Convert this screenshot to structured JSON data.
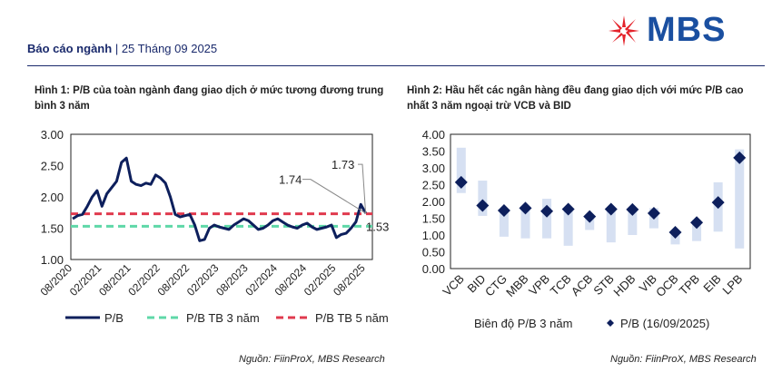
{
  "header": {
    "section": "Báo cáo ngành",
    "separator": "|",
    "date": "25 Tháng 09 2025"
  },
  "logo": {
    "text": "MBS",
    "colors": {
      "star": "#e4232b",
      "text": "#1a4fa0"
    }
  },
  "colors": {
    "navy": "#0d1f5c",
    "green": "#5fd8a8",
    "red": "#e03a4e",
    "range": "#d6e0f2"
  },
  "figure1": {
    "title": "Hình 1: P/B của toàn ngành đang giao dịch ở mức tương đương trung bình 3 năm",
    "source": "Nguồn: FiinProX, MBS Research"
  },
  "figure2": {
    "title": "Hình 2: Hầu hết các ngân hàng đều đang giao dịch với mức P/B cao nhất 3 năm ngoại trừ VCB và BID",
    "source": "Nguồn: FiinProX, MBS Research"
  },
  "chart_data": [
    {
      "type": "line",
      "ylim": [
        1.0,
        3.0
      ],
      "yticks": [
        "1.00",
        "1.50",
        "2.00",
        "2.50",
        "3.00"
      ],
      "xticks": [
        "08/2020",
        "02/2021",
        "08/2021",
        "02/2022",
        "08/2022",
        "02/2023",
        "08/2023",
        "02/2024",
        "08/2024",
        "02/2025",
        "08/2025"
      ],
      "grid": false,
      "legend_position": "bottom",
      "series": [
        {
          "name": "P/B",
          "color": "#0d1f5c",
          "style": "solid",
          "points": [
            [
              "2020-08",
              1.65
            ],
            [
              "2020-09",
              1.7
            ],
            [
              "2020-10",
              1.72
            ],
            [
              "2020-11",
              1.85
            ],
            [
              "2020-12",
              2.0
            ],
            [
              "2021-01",
              2.1
            ],
            [
              "2021-02",
              1.85
            ],
            [
              "2021-03",
              2.05
            ],
            [
              "2021-04",
              2.15
            ],
            [
              "2021-05",
              2.25
            ],
            [
              "2021-06",
              2.55
            ],
            [
              "2021-07",
              2.62
            ],
            [
              "2021-08",
              2.25
            ],
            [
              "2021-09",
              2.2
            ],
            [
              "2021-10",
              2.18
            ],
            [
              "2021-11",
              2.22
            ],
            [
              "2021-12",
              2.2
            ],
            [
              "2022-01",
              2.35
            ],
            [
              "2022-02",
              2.3
            ],
            [
              "2022-03",
              2.22
            ],
            [
              "2022-04",
              2.0
            ],
            [
              "2022-05",
              1.72
            ],
            [
              "2022-06",
              1.68
            ],
            [
              "2022-07",
              1.7
            ],
            [
              "2022-08",
              1.72
            ],
            [
              "2022-09",
              1.55
            ],
            [
              "2022-10",
              1.3
            ],
            [
              "2022-11",
              1.32
            ],
            [
              "2022-12",
              1.5
            ],
            [
              "2023-01",
              1.55
            ],
            [
              "2023-02",
              1.52
            ],
            [
              "2023-03",
              1.5
            ],
            [
              "2023-04",
              1.48
            ],
            [
              "2023-05",
              1.55
            ],
            [
              "2023-06",
              1.6
            ],
            [
              "2023-07",
              1.65
            ],
            [
              "2023-08",
              1.62
            ],
            [
              "2023-09",
              1.55
            ],
            [
              "2023-10",
              1.48
            ],
            [
              "2023-11",
              1.5
            ],
            [
              "2023-12",
              1.55
            ],
            [
              "2024-01",
              1.62
            ],
            [
              "2024-02",
              1.65
            ],
            [
              "2024-03",
              1.6
            ],
            [
              "2024-04",
              1.55
            ],
            [
              "2024-05",
              1.52
            ],
            [
              "2024-06",
              1.5
            ],
            [
              "2024-07",
              1.55
            ],
            [
              "2024-08",
              1.58
            ],
            [
              "2024-09",
              1.52
            ],
            [
              "2024-10",
              1.48
            ],
            [
              "2024-11",
              1.5
            ],
            [
              "2024-12",
              1.52
            ],
            [
              "2025-01",
              1.55
            ],
            [
              "2025-02",
              1.35
            ],
            [
              "2025-03",
              1.4
            ],
            [
              "2025-04",
              1.42
            ],
            [
              "2025-05",
              1.5
            ],
            [
              "2025-06",
              1.6
            ],
            [
              "2025-07",
              1.88
            ],
            [
              "2025-08",
              1.74
            ]
          ]
        },
        {
          "name": "P/B TB 3 năm",
          "color": "#5fd8a8",
          "style": "dashed",
          "value": 1.53
        },
        {
          "name": "P/B TB 5 năm",
          "color": "#e03a4e",
          "style": "dashed",
          "value": 1.73
        }
      ],
      "annotations": [
        "1.74",
        "1.73",
        "1.53"
      ]
    },
    {
      "type": "scatter",
      "ylim": [
        0,
        4
      ],
      "yticks": [
        "0.00",
        "0.50",
        "1.00",
        "1.50",
        "2.00",
        "2.50",
        "3.00",
        "3.50",
        "4.00"
      ],
      "categories": [
        "VCB",
        "BID",
        "CTG",
        "MBB",
        "VPB",
        "TCB",
        "ACB",
        "STB",
        "HDB",
        "VIB",
        "OCB",
        "TPB",
        "EIB",
        "LPB"
      ],
      "range_low": [
        2.25,
        1.57,
        0.95,
        0.9,
        0.9,
        0.68,
        1.15,
        0.78,
        1.0,
        1.2,
        0.72,
        0.82,
        1.1,
        0.6
      ],
      "range_high": [
        3.6,
        2.62,
        1.75,
        1.8,
        2.08,
        1.78,
        1.6,
        1.8,
        1.8,
        1.8,
        1.15,
        1.45,
        2.57,
        3.55
      ],
      "values": [
        2.57,
        1.88,
        1.73,
        1.8,
        1.71,
        1.77,
        1.55,
        1.77,
        1.76,
        1.65,
        1.08,
        1.37,
        1.97,
        3.3
      ],
      "grid": false,
      "legend_position": "bottom",
      "legend": [
        "Biên độ P/B 3 năm",
        "P/B (16/09/2025)"
      ]
    }
  ]
}
